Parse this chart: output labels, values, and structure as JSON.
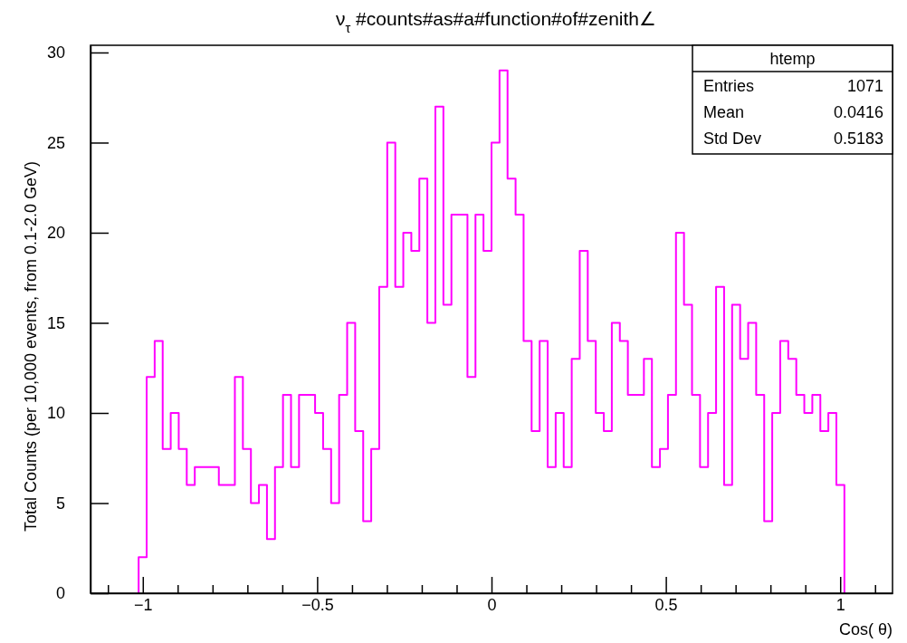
{
  "chart_data": {
    "type": "histogram",
    "title": "ν$_{τ}$ #counts#as#a#function#of#zenith∠",
    "xlabel": "Cos( θ)",
    "ylabel": "Total Counts (per 10,000 events, from 0.1-2.0 GeV)",
    "bins": [
      -1.012,
      -0.989,
      -0.966,
      -0.943,
      -0.92,
      -0.897,
      -0.874,
      -0.851,
      -0.828,
      -0.805,
      -0.782,
      -0.759,
      -0.736,
      -0.713,
      -0.69,
      -0.667,
      -0.644,
      -0.621,
      -0.598,
      -0.575,
      -0.552,
      -0.529,
      -0.506,
      -0.483,
      -0.46,
      -0.437,
      -0.414,
      -0.391,
      -0.368,
      -0.345,
      -0.322,
      -0.299,
      -0.276,
      -0.253,
      -0.23,
      -0.207,
      -0.184,
      -0.161,
      -0.138,
      -0.115,
      -0.092,
      -0.069,
      -0.046,
      -0.023,
      0,
      0.023,
      0.046,
      0.069,
      0.092,
      0.115,
      0.138,
      0.161,
      0.184,
      0.207,
      0.23,
      0.253,
      0.276,
      0.299,
      0.322,
      0.345,
      0.368,
      0.391,
      0.414,
      0.437,
      0.46,
      0.483,
      0.506,
      0.529,
      0.552,
      0.575,
      0.598,
      0.621,
      0.644,
      0.667,
      0.69,
      0.713,
      0.736,
      0.759,
      0.782,
      0.805,
      0.828,
      0.851,
      0.874,
      0.897,
      0.92,
      0.943,
      0.966,
      0.989,
      1.012
    ],
    "values": [
      2,
      12,
      14,
      8,
      10,
      8,
      6,
      7,
      7,
      7,
      6,
      6,
      12,
      8,
      5,
      6,
      3,
      7,
      11,
      7,
      11,
      11,
      10,
      8,
      5,
      11,
      15,
      9,
      4,
      8,
      17,
      25,
      17,
      20,
      19,
      23,
      15,
      27,
      16,
      21,
      21,
      12,
      21,
      19,
      25,
      29,
      23,
      21,
      14,
      9,
      14,
      7,
      10,
      7,
      13,
      19,
      14,
      10,
      9,
      15,
      14,
      11,
      11,
      13,
      7,
      8,
      11,
      20,
      16,
      11,
      7,
      10,
      17,
      6,
      16,
      13,
      15,
      11,
      4,
      10,
      14,
      13,
      11,
      10,
      11,
      9,
      10,
      6
    ],
    "color": "#ff00ff",
    "xlim": [
      -1.15,
      1.15
    ],
    "xticks": [
      {
        "value": -1.1,
        "label": null
      },
      {
        "value": -1,
        "label": "−1"
      },
      {
        "value": -0.9,
        "label": null
      },
      {
        "value": -0.8,
        "label": null
      },
      {
        "value": -0.7,
        "label": null
      },
      {
        "value": -0.6,
        "label": null
      },
      {
        "value": -0.5,
        "label": "−0.5"
      },
      {
        "value": -0.4,
        "label": null
      },
      {
        "value": -0.3,
        "label": null
      },
      {
        "value": -0.2,
        "label": null
      },
      {
        "value": -0.1,
        "label": null
      },
      0,
      {
        "value": 0.1,
        "label": null
      },
      {
        "value": 0.2,
        "label": null
      },
      {
        "value": 0.3,
        "label": null
      },
      {
        "value": 0.4,
        "label": null
      },
      0.5,
      {
        "value": 0.6,
        "label": null
      },
      {
        "value": 0.7,
        "label": null
      },
      {
        "value": 0.8,
        "label": null
      },
      {
        "value": 0.9,
        "label": null
      },
      1,
      {
        "value": 1.1,
        "label": null
      }
    ],
    "ylim": [
      0,
      30.4
    ],
    "yticks": [
      0,
      5,
      10,
      15,
      20,
      25,
      30
    ],
    "annotations": [
      "htemp",
      "Entries",
      "1071",
      "Mean",
      "0.0416",
      "Std Dev",
      "0.5183"
    ]
  }
}
